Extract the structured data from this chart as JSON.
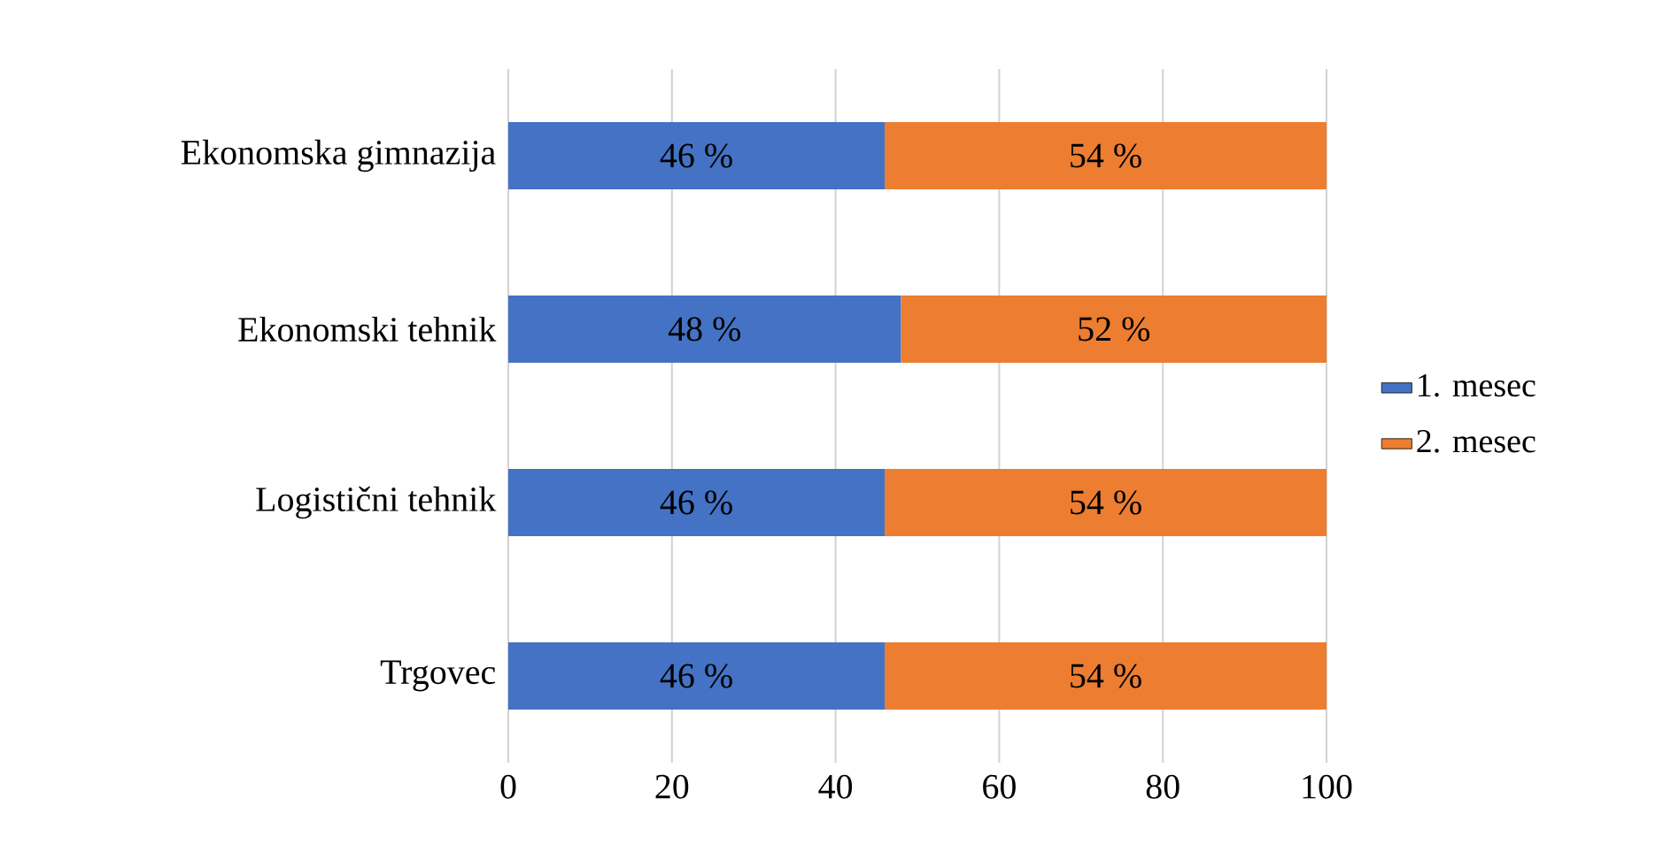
{
  "chart_data": {
    "type": "bar",
    "orientation": "horizontal",
    "stacked": true,
    "categories": [
      "Ekonomska gimnazija",
      "Ekonomski tehnik",
      "Logistični tehnik",
      "Trgovec"
    ],
    "series": [
      {
        "name": "1. mesec",
        "color": "#4472c4",
        "values": [
          46,
          48,
          46,
          46
        ],
        "value_labels": [
          "46 %",
          "48 %",
          "46 %",
          "46 %"
        ]
      },
      {
        "name": "2. mesec",
        "color": "#ed7d31",
        "values": [
          54,
          52,
          54,
          54
        ],
        "value_labels": [
          "54 %",
          "52 %",
          "54 %",
          "54 %"
        ]
      }
    ],
    "xlim": [
      0,
      100
    ],
    "xticks": [
      0,
      20,
      40,
      60,
      80,
      100
    ],
    "grid": "x",
    "legend": "right"
  }
}
